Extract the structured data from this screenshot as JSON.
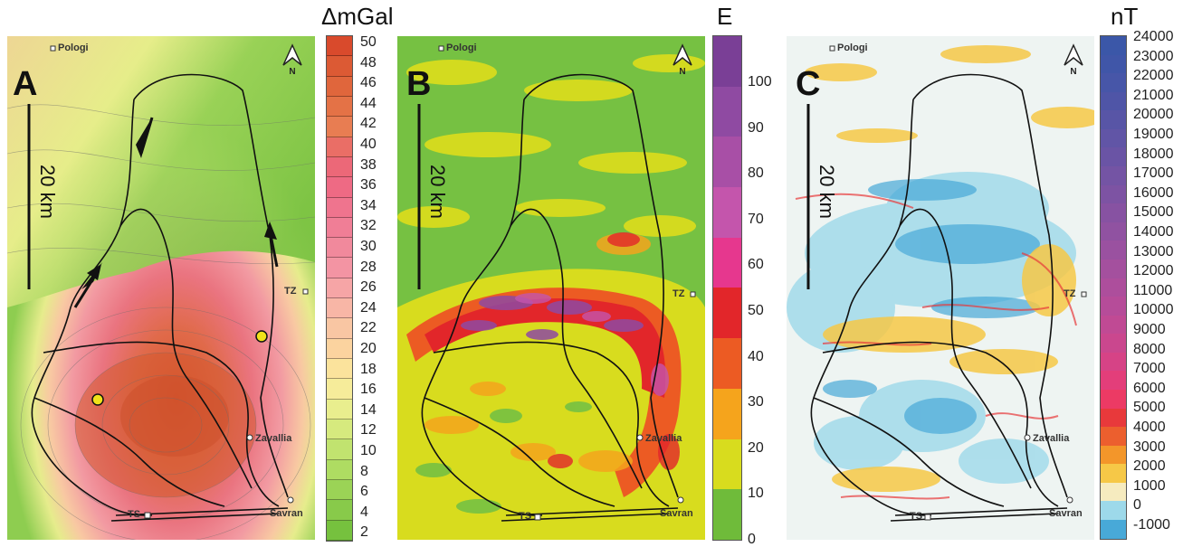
{
  "panels": [
    {
      "letter": "A",
      "colorbar_title": "ΔmGal",
      "colorbar_ticks": [
        "50",
        "48",
        "46",
        "44",
        "42",
        "40",
        "38",
        "36",
        "34",
        "32",
        "30",
        "28",
        "26",
        "24",
        "22",
        "20",
        "18",
        "16",
        "14",
        "12",
        "10",
        "8",
        "6",
        "4",
        "2"
      ],
      "colorbar_colors": [
        "#d94a2c",
        "#dc5a34",
        "#e0663c",
        "#e47246",
        "#e87d52",
        "#ea6e66",
        "#ec6878",
        "#ee6a84",
        "#ef748e",
        "#f07e96",
        "#f1899c",
        "#f394a3",
        "#f6a5a6",
        "#f8b6a6",
        "#f9c6a3",
        "#fbd39f",
        "#fbe39c",
        "#f6ec9a",
        "#e9ee8e",
        "#d6ea7e",
        "#c1e36f",
        "#aedc62",
        "#9bd356",
        "#88ca4a",
        "#76c13e"
      ],
      "scale_label": "20 km",
      "places": {
        "pologi": "Pologi",
        "tz": "TZ",
        "zavallia": "Zavallia",
        "ts": "TS",
        "savran": "Savran"
      }
    },
    {
      "letter": "B",
      "colorbar_title": "E",
      "colorbar_ticks": [
        "100",
        "90",
        "80",
        "70",
        "60",
        "50",
        "40",
        "30",
        "20",
        "10",
        "0"
      ],
      "colorbar_colors": [
        "#7a3f96",
        "#8f4aa2",
        "#a84fa6",
        "#c455ac",
        "#e6378e",
        "#e2262a",
        "#ec5b23",
        "#f5a41c",
        "#d8dc1e",
        "#6fbb3a"
      ],
      "scale_label": "20 km",
      "places": {
        "pologi": "Pologi",
        "tz": "TZ",
        "zavallia": "Zavallia",
        "ts": "TS",
        "savran": "Savran"
      }
    },
    {
      "letter": "C",
      "colorbar_title": "nT",
      "colorbar_ticks": [
        "24000",
        "23000",
        "22000",
        "21000",
        "20000",
        "19000",
        "18000",
        "17000",
        "16000",
        "15000",
        "14000",
        "13000",
        "12000",
        "11000",
        "10000",
        "9000",
        "8000",
        "7000",
        "6000",
        "5000",
        "4000",
        "3000",
        "2000",
        "1000",
        "0",
        "-1000"
      ],
      "colorbar_colors": [
        "#3b57a8",
        "#4056a8",
        "#4756a8",
        "#4f55a7",
        "#5855a6",
        "#6155a6",
        "#6a54a5",
        "#7454a4",
        "#7d53a3",
        "#8752a2",
        "#9052a1",
        "#9a51a0",
        "#a4509e",
        "#ad4e9c",
        "#b64c99",
        "#c04a94",
        "#ca478e",
        "#d64386",
        "#e33e7a",
        "#ec3a64",
        "#e8393b",
        "#ec5f2e",
        "#f3962a",
        "#f6c847",
        "#f6ebbf",
        "#9dd9ea",
        "#48a9d8"
      ],
      "scale_label": "20 km",
      "places": {
        "pologi": "Pologi",
        "tz": "TZ",
        "zavallia": "Zavallia",
        "ts": "TS",
        "savran": "Savran"
      }
    }
  ],
  "north_label": "N"
}
